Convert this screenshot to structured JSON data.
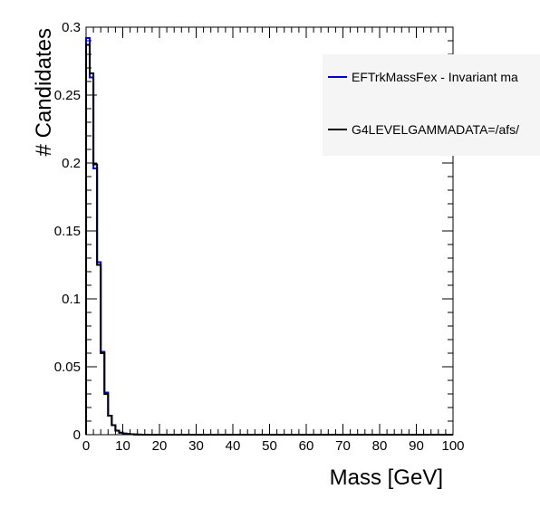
{
  "chart_data": {
    "type": "histogram",
    "xlabel": "Mass [GeV]",
    "ylabel": "# Candidates",
    "xlim": [
      0,
      100
    ],
    "ylim": [
      0,
      0.3
    ],
    "xticks": [
      "0",
      "10",
      "20",
      "30",
      "40",
      "50",
      "60",
      "70",
      "80",
      "90",
      "100"
    ],
    "yticks": [
      "0",
      "0.05",
      "0.1",
      "0.15",
      "0.2",
      "0.25",
      "0.3"
    ],
    "bin_width": 1,
    "legend_position": "top-right",
    "series": [
      {
        "name": "EFTrkMassFex - Invariant ma",
        "color": "#0000cc",
        "values": [
          0.292,
          0.263,
          0.196,
          0.127,
          0.061,
          0.031,
          0.014,
          0.007,
          0.003,
          0.0015,
          0.0008,
          0.0005,
          0.0003,
          0.0002,
          0.0001
        ]
      },
      {
        "name": "G4LEVELGAMMADATA=/afs/",
        "color": "#000000",
        "values": [
          0.287,
          0.266,
          0.199,
          0.125,
          0.06,
          0.03,
          0.014,
          0.007,
          0.003,
          0.0015,
          0.0008,
          0.0005,
          0.0003,
          0.0002,
          0.0001
        ]
      }
    ]
  }
}
